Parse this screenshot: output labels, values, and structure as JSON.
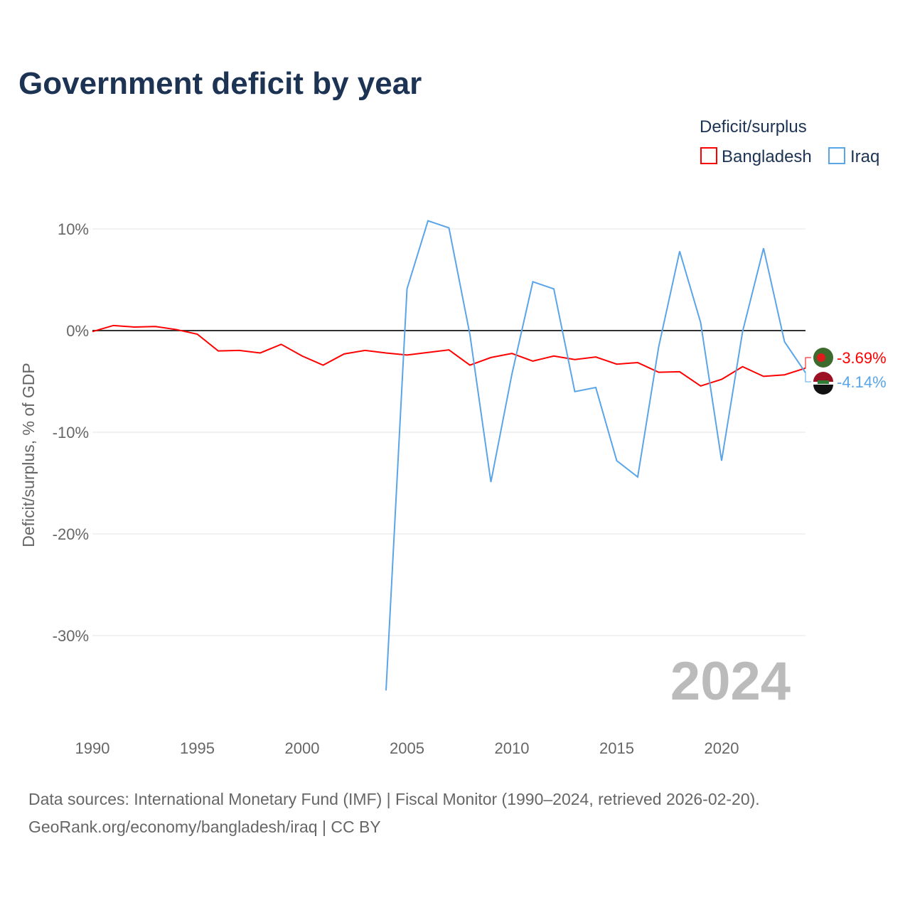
{
  "chart_data": {
    "type": "line",
    "title": "Government deficit by year",
    "ylabel": "Deficit/surplus, % of GDP",
    "xlabel": "",
    "xlim": [
      1990,
      2024
    ],
    "ylim": [
      -38,
      13
    ],
    "x_ticks": [
      "1990",
      "1995",
      "2000",
      "2005",
      "2010",
      "2015",
      "2020"
    ],
    "y_ticks": [
      {
        "v": 10,
        "label": "10%"
      },
      {
        "v": 0,
        "label": "0%"
      },
      {
        "v": -10,
        "label": "-10%"
      },
      {
        "v": -20,
        "label": "-20%"
      },
      {
        "v": -30,
        "label": "-30%"
      }
    ],
    "legend_title": "Deficit/surplus",
    "legend_position": "top-right",
    "year_watermark": "2024",
    "series": [
      {
        "name": "Bangladesh",
        "color": "#ff0000",
        "end_label": "-3.69%",
        "x": [
          1990,
          1991,
          1992,
          1993,
          1994,
          1995,
          1996,
          1997,
          1998,
          1999,
          2000,
          2001,
          2002,
          2003,
          2004,
          2005,
          2006,
          2007,
          2008,
          2009,
          2010,
          2011,
          2012,
          2013,
          2014,
          2015,
          2016,
          2017,
          2018,
          2019,
          2020,
          2021,
          2022,
          2023,
          2024
        ],
        "values": [
          -0.1,
          0.5,
          0.35,
          0.4,
          0.1,
          -0.35,
          -2.0,
          -1.95,
          -2.2,
          -1.35,
          -2.5,
          -3.4,
          -2.3,
          -1.95,
          -2.2,
          -2.4,
          -2.15,
          -1.9,
          -3.4,
          -2.65,
          -2.25,
          -3.0,
          -2.5,
          -2.85,
          -2.6,
          -3.3,
          -3.15,
          -4.1,
          -4.05,
          -5.45,
          -4.8,
          -3.55,
          -4.5,
          -4.35,
          -3.69
        ]
      },
      {
        "name": "Iraq",
        "color": "#5aa5e8",
        "end_label": "-4.14%",
        "x": [
          2004,
          2005,
          2006,
          2007,
          2008,
          2009,
          2010,
          2011,
          2012,
          2013,
          2014,
          2015,
          2016,
          2017,
          2018,
          2019,
          2020,
          2021,
          2022,
          2023,
          2024
        ],
        "values": [
          -35.4,
          4.1,
          10.8,
          10.1,
          -0.4,
          -14.9,
          -4.3,
          4.8,
          4.1,
          -6.0,
          -5.6,
          -12.8,
          -14.4,
          -1.6,
          7.8,
          0.8,
          -12.8,
          -0.1,
          8.1,
          -1.1,
          -4.14
        ]
      }
    ],
    "source_line1": "Data sources: International Monetary Fund (IMF) | Fiscal Monitor (1990–2024, retrieved 2026-02-20).",
    "source_line2": "GeoRank.org/economy/bangladesh/iraq | CC BY"
  }
}
